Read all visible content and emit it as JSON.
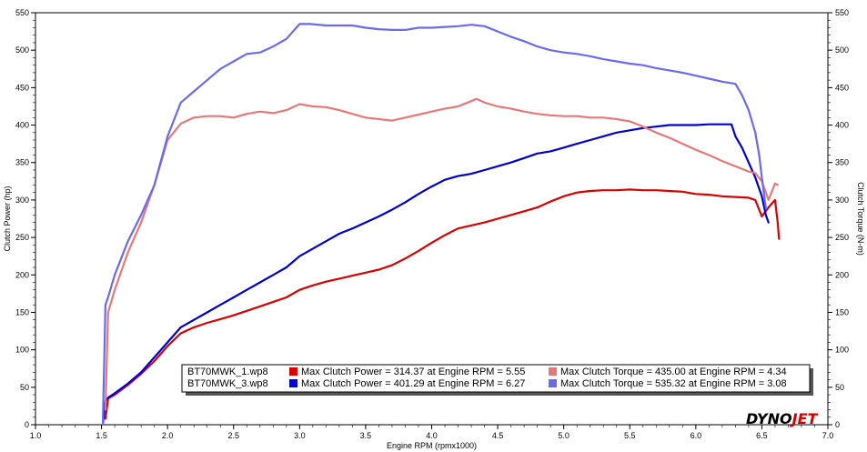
{
  "chart_data": {
    "type": "line",
    "xlabel": "Engine RPM (rpmx1000)",
    "ylabel_left": "Clutch Power (hp)",
    "ylabel_right": "Clutch Torque (N-m)",
    "xlim": [
      1.0,
      7.0
    ],
    "ylim": [
      0,
      550
    ],
    "xticks": [
      "1.0",
      "1.5",
      "2.0",
      "2.5",
      "3.0",
      "3.5",
      "4.0",
      "4.5",
      "5.0",
      "5.5",
      "6.0",
      "6.5",
      "7.0"
    ],
    "yticks": [
      "0",
      "50",
      "100",
      "150",
      "200",
      "250",
      "300",
      "350",
      "400",
      "450",
      "500",
      "550"
    ],
    "grid": false,
    "legend": [
      {
        "file": "BT70MWK_1.wp8",
        "power_label": "Max Clutch Power = 314.37 at Engine RPM = 5.55",
        "torque_label": "Max Clutch Torque = 435.00 at Engine RPM = 4.34"
      },
      {
        "file": "BT70MWK_3.wp8",
        "power_label": "Max Clutch Power = 401.29 at Engine RPM = 6.27",
        "torque_label": "Max Clutch Torque = 535.32 at Engine RPM = 3.08"
      }
    ],
    "series": [
      {
        "color": "#d90000",
        "x": [
          1.53,
          1.55,
          1.6,
          1.7,
          1.8,
          1.9,
          2.0,
          2.1,
          2.2,
          2.3,
          2.4,
          2.5,
          2.6,
          2.7,
          2.8,
          2.9,
          3.0,
          3.1,
          3.2,
          3.3,
          3.4,
          3.5,
          3.6,
          3.7,
          3.8,
          3.9,
          4.0,
          4.1,
          4.2,
          4.3,
          4.4,
          4.5,
          4.6,
          4.7,
          4.8,
          4.9,
          5.0,
          5.1,
          5.2,
          5.3,
          5.4,
          5.5,
          5.6,
          5.7,
          5.8,
          5.9,
          6.0,
          6.1,
          6.2,
          6.3,
          6.4,
          6.45,
          6.5,
          6.55,
          6.6,
          6.62,
          6.63
        ],
        "y": [
          8,
          35,
          40,
          53,
          68,
          85,
          105,
          122,
          130,
          136,
          141,
          146,
          152,
          158,
          164,
          170,
          180,
          186,
          191,
          195,
          199,
          203,
          207,
          213,
          222,
          232,
          243,
          253,
          262,
          266,
          270,
          275,
          280,
          285,
          290,
          298,
          305,
          310,
          312,
          313,
          313,
          314,
          313,
          313,
          312,
          311,
          308,
          307,
          305,
          304,
          303,
          300,
          278,
          290,
          300,
          270,
          248
        ]
      },
      {
        "color": "#0000d0",
        "x": [
          1.51,
          1.53,
          1.55,
          1.6,
          1.7,
          1.8,
          1.9,
          2.0,
          2.1,
          2.2,
          2.3,
          2.4,
          2.5,
          2.6,
          2.7,
          2.8,
          2.9,
          3.0,
          3.1,
          3.2,
          3.3,
          3.4,
          3.5,
          3.6,
          3.7,
          3.8,
          3.9,
          4.0,
          4.1,
          4.2,
          4.3,
          4.4,
          4.5,
          4.6,
          4.7,
          4.8,
          4.9,
          5.0,
          5.1,
          5.2,
          5.3,
          5.4,
          5.5,
          5.6,
          5.7,
          5.8,
          5.9,
          6.0,
          6.1,
          6.2,
          6.27,
          6.3,
          6.35,
          6.4,
          6.45,
          6.5,
          6.53,
          6.55
        ],
        "y": [
          0,
          32,
          36,
          42,
          55,
          70,
          90,
          110,
          130,
          140,
          150,
          160,
          170,
          180,
          190,
          200,
          210,
          225,
          235,
          245,
          255,
          262,
          270,
          278,
          287,
          297,
          308,
          318,
          327,
          332,
          335,
          340,
          345,
          350,
          356,
          362,
          365,
          370,
          375,
          380,
          385,
          390,
          393,
          396,
          398,
          400,
          400,
          400,
          401,
          401,
          401,
          385,
          370,
          350,
          330,
          305,
          280,
          270
        ]
      },
      {
        "color": "#e87878",
        "x": [
          1.53,
          1.55,
          1.6,
          1.7,
          1.8,
          1.9,
          2.0,
          2.1,
          2.2,
          2.3,
          2.4,
          2.5,
          2.6,
          2.7,
          2.8,
          2.9,
          3.0,
          3.1,
          3.2,
          3.3,
          3.4,
          3.5,
          3.6,
          3.7,
          3.8,
          3.9,
          4.0,
          4.1,
          4.2,
          4.3,
          4.34,
          4.4,
          4.5,
          4.6,
          4.7,
          4.8,
          4.9,
          5.0,
          5.1,
          5.2,
          5.3,
          5.4,
          5.5,
          5.6,
          5.7,
          5.8,
          5.9,
          6.0,
          6.1,
          6.2,
          6.3,
          6.4,
          6.45,
          6.5,
          6.55,
          6.6,
          6.62
        ],
        "y": [
          20,
          150,
          180,
          230,
          270,
          320,
          380,
          402,
          410,
          412,
          412,
          410,
          415,
          418,
          416,
          420,
          428,
          425,
          424,
          420,
          415,
          410,
          408,
          406,
          410,
          414,
          418,
          422,
          425,
          432,
          435,
          430,
          425,
          422,
          418,
          415,
          413,
          412,
          412,
          410,
          410,
          408,
          405,
          398,
          390,
          383,
          375,
          367,
          360,
          352,
          345,
          338,
          336,
          325,
          300,
          322,
          320
        ]
      },
      {
        "color": "#6a6aea",
        "x": [
          1.51,
          1.53,
          1.55,
          1.6,
          1.7,
          1.8,
          1.9,
          2.0,
          2.1,
          2.2,
          2.3,
          2.4,
          2.5,
          2.6,
          2.7,
          2.8,
          2.9,
          3.0,
          3.08,
          3.2,
          3.3,
          3.4,
          3.5,
          3.6,
          3.7,
          3.8,
          3.9,
          4.0,
          4.1,
          4.2,
          4.3,
          4.4,
          4.5,
          4.6,
          4.7,
          4.8,
          4.9,
          5.0,
          5.1,
          5.2,
          5.3,
          5.4,
          5.5,
          5.6,
          5.7,
          5.8,
          5.9,
          6.0,
          6.1,
          6.2,
          6.3,
          6.35,
          6.4,
          6.45,
          6.48,
          6.5,
          6.53
        ],
        "y": [
          0,
          160,
          170,
          200,
          245,
          280,
          320,
          385,
          430,
          445,
          460,
          475,
          485,
          495,
          497,
          505,
          515,
          535,
          535,
          533,
          533,
          533,
          530,
          528,
          527,
          527,
          530,
          530,
          531,
          532,
          534,
          532,
          525,
          518,
          512,
          505,
          500,
          497,
          495,
          492,
          488,
          485,
          482,
          480,
          476,
          473,
          470,
          466,
          462,
          458,
          455,
          440,
          420,
          390,
          360,
          330,
          290
        ]
      }
    ]
  },
  "logo": {
    "part1": "DYNO",
    "part2": "JET"
  }
}
